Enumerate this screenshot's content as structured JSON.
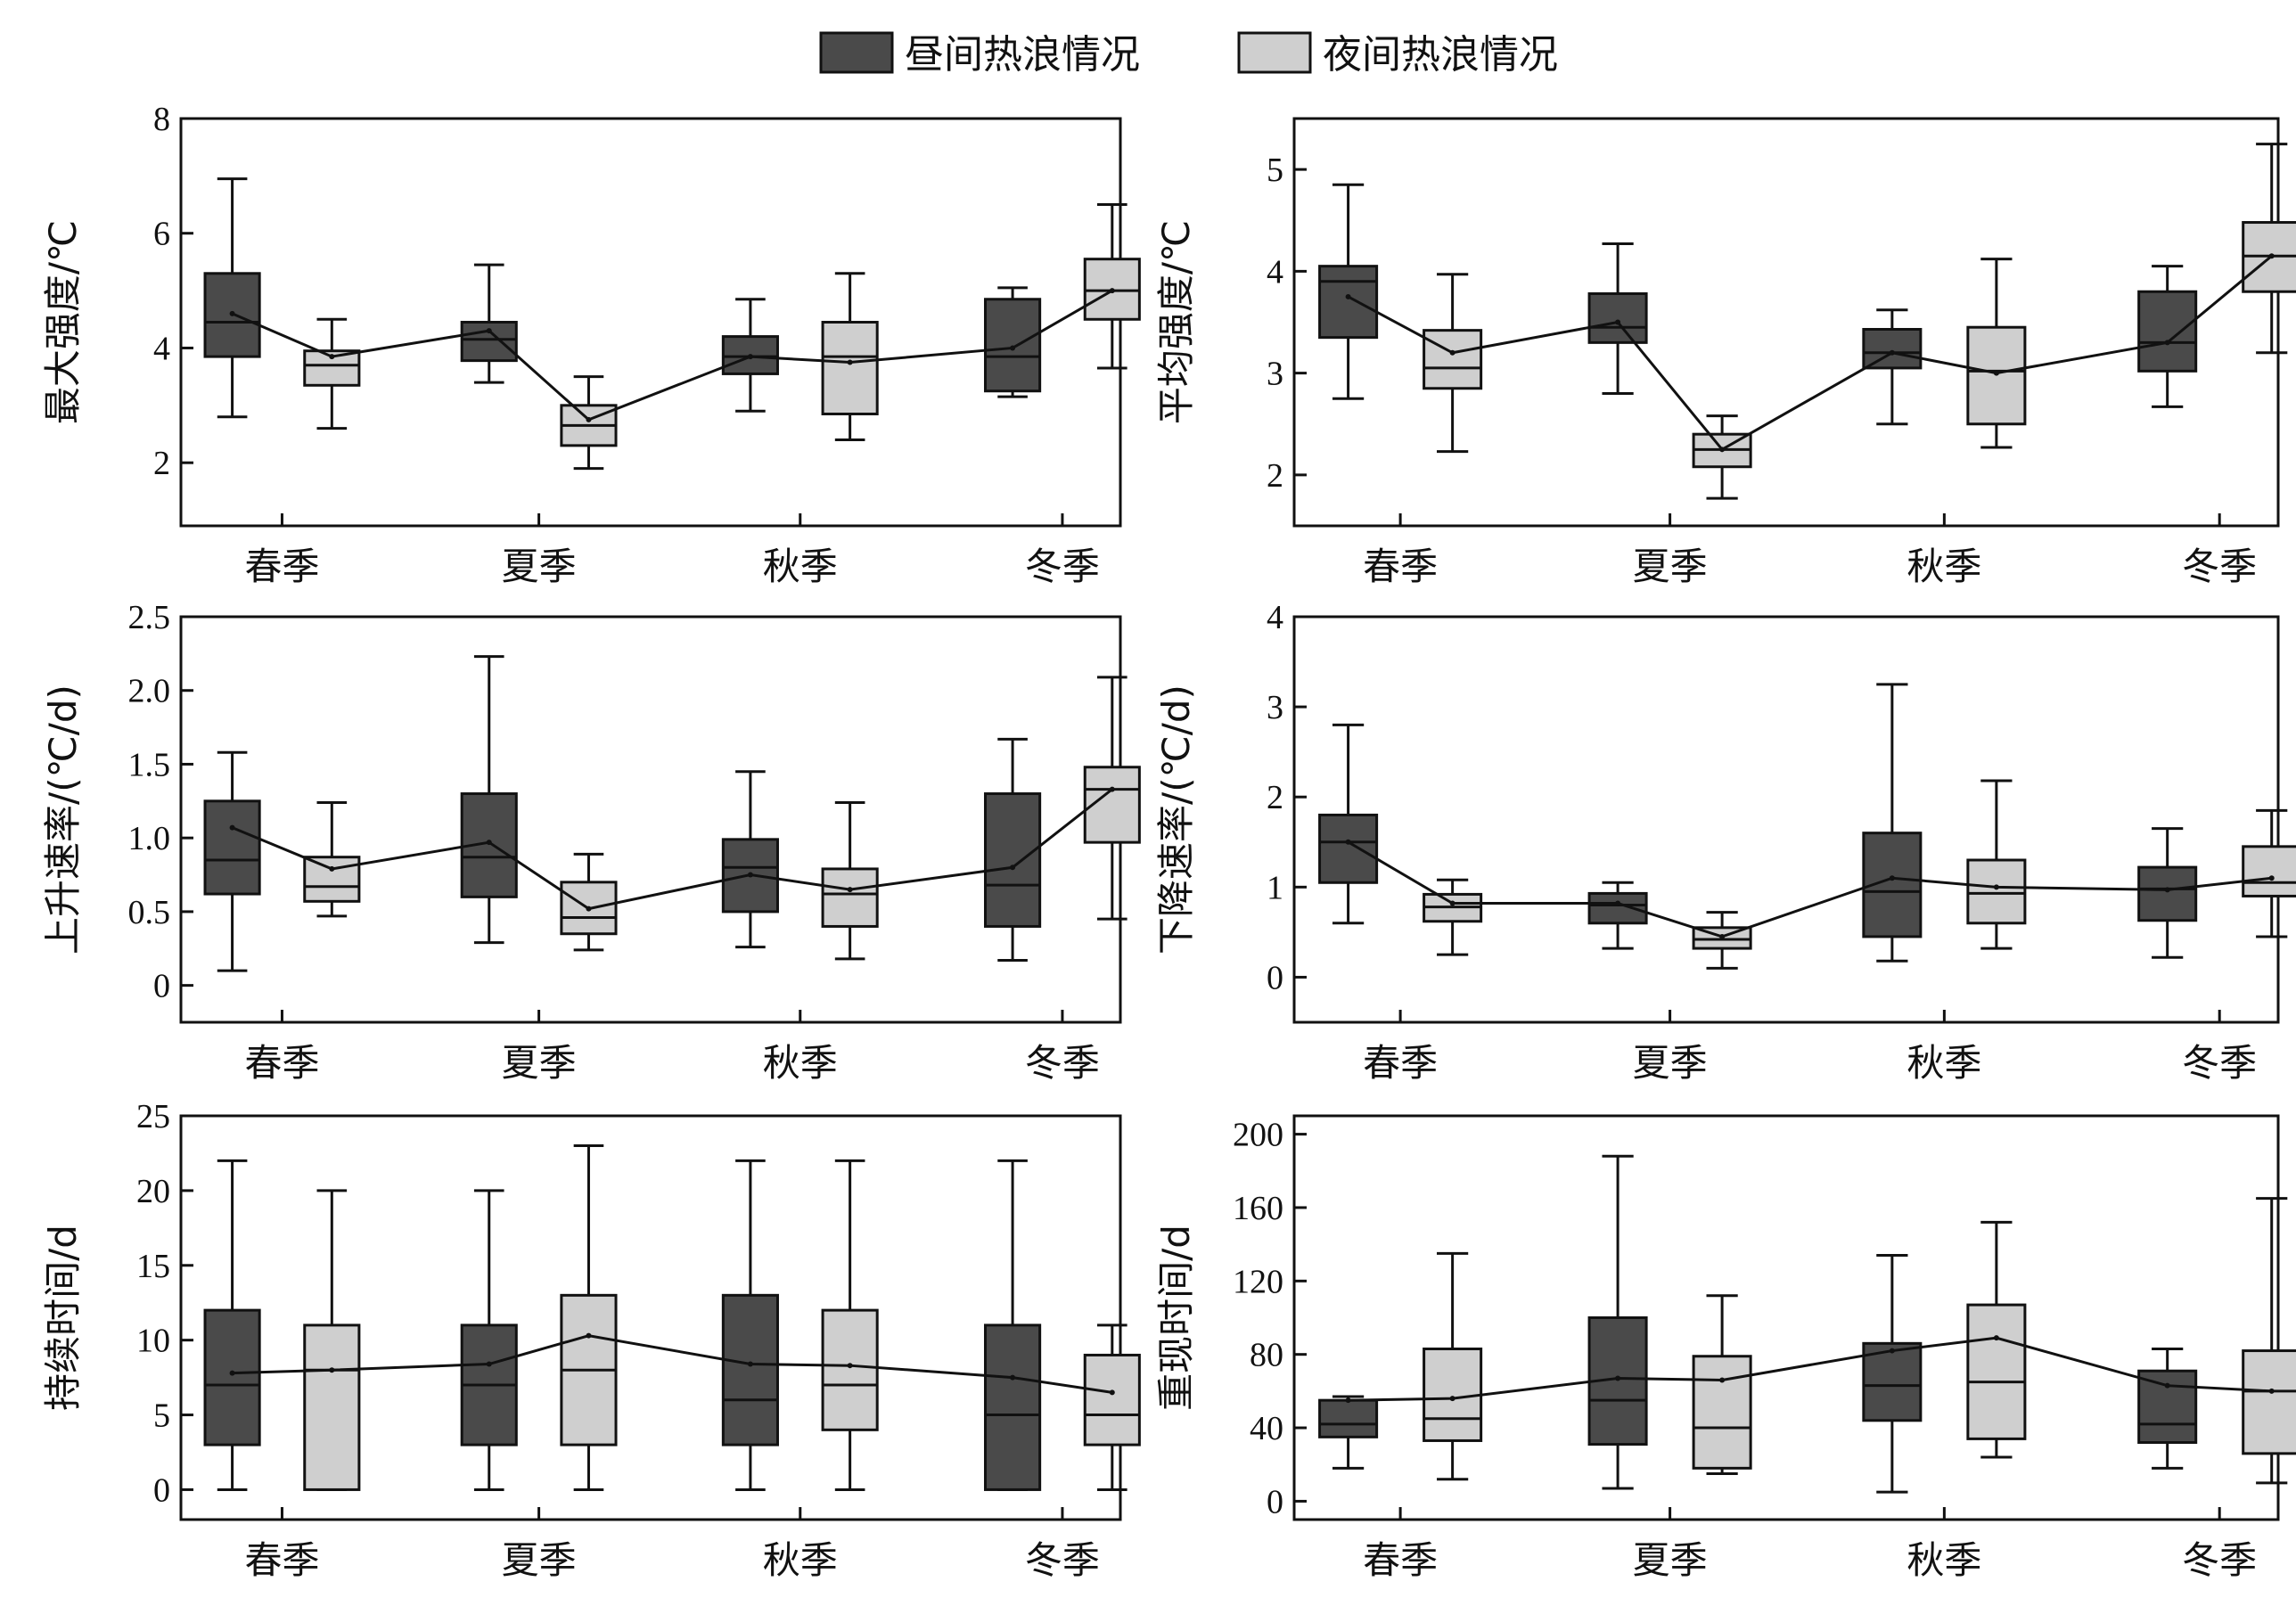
{
  "legend": {
    "day_label": "昼间热浪情况",
    "night_label": "夜间热浪情况",
    "day_color": "#4a4a4a",
    "night_color": "#cfcfcf"
  },
  "chart_data": [
    {
      "type": "box",
      "ylabel": "最大强度/℃",
      "yticks": [
        2,
        4,
        6,
        8
      ],
      "ylim": [
        0.9,
        8
      ],
      "categories": [
        "春季",
        "夏季",
        "秋季",
        "冬季"
      ],
      "series": [
        {
          "name": "昼间热浪情况",
          "boxes": [
            {
              "whisker_low": 2.8,
              "q1": 3.85,
              "median": 4.45,
              "q3": 5.3,
              "whisker_high": 6.95
            },
            {
              "whisker_low": 3.4,
              "q1": 3.78,
              "median": 4.15,
              "q3": 4.45,
              "whisker_high": 5.45
            },
            {
              "whisker_low": 2.9,
              "q1": 3.55,
              "median": 3.85,
              "q3": 4.2,
              "whisker_high": 4.85
            },
            {
              "whisker_low": 3.15,
              "q1": 3.25,
              "median": 3.85,
              "q3": 4.85,
              "whisker_high": 5.05
            }
          ],
          "mean": [
            4.6,
            4.3,
            3.85,
            4.0
          ]
        },
        {
          "name": "夜间热浪情况",
          "boxes": [
            {
              "whisker_low": 2.6,
              "q1": 3.35,
              "median": 3.7,
              "q3": 3.95,
              "whisker_high": 4.5
            },
            {
              "whisker_low": 1.9,
              "q1": 2.3,
              "median": 2.65,
              "q3": 3.0,
              "whisker_high": 3.5
            },
            {
              "whisker_low": 2.4,
              "q1": 2.85,
              "median": 3.85,
              "q3": 4.45,
              "whisker_high": 5.3
            },
            {
              "whisker_low": 3.65,
              "q1": 4.5,
              "median": 5.0,
              "q3": 5.55,
              "whisker_high": 6.5
            }
          ],
          "mean": [
            3.85,
            2.75,
            3.75,
            5.0
          ]
        }
      ]
    },
    {
      "type": "box",
      "ylabel": "平均强度/℃",
      "yticks": [
        2,
        3,
        4,
        5
      ],
      "ylim": [
        1.5,
        5.5
      ],
      "categories": [
        "春季",
        "夏季",
        "秋季",
        "冬季"
      ],
      "series": [
        {
          "name": "昼间热浪情况",
          "boxes": [
            {
              "whisker_low": 2.75,
              "q1": 3.35,
              "median": 3.9,
              "q3": 4.05,
              "whisker_high": 4.85
            },
            {
              "whisker_low": 2.8,
              "q1": 3.3,
              "median": 3.45,
              "q3": 3.78,
              "whisker_high": 4.27
            },
            {
              "whisker_low": 2.5,
              "q1": 3.05,
              "median": 3.2,
              "q3": 3.43,
              "whisker_high": 3.62
            },
            {
              "whisker_low": 2.67,
              "q1": 3.02,
              "median": 3.3,
              "q3": 3.8,
              "whisker_high": 4.05
            }
          ],
          "mean": [
            3.75,
            3.5,
            3.2,
            3.3
          ]
        },
        {
          "name": "夜间热浪情况",
          "boxes": [
            {
              "whisker_low": 2.23,
              "q1": 2.85,
              "median": 3.05,
              "q3": 3.42,
              "whisker_high": 3.97
            },
            {
              "whisker_low": 1.77,
              "q1": 2.08,
              "median": 2.25,
              "q3": 2.4,
              "whisker_high": 2.58
            },
            {
              "whisker_low": 2.27,
              "q1": 2.5,
              "median": 3.02,
              "q3": 3.45,
              "whisker_high": 4.12
            },
            {
              "whisker_low": 3.2,
              "q1": 3.8,
              "median": 4.15,
              "q3": 4.48,
              "whisker_high": 5.25
            }
          ],
          "mean": [
            3.2,
            2.25,
            3.0,
            4.15
          ]
        }
      ]
    },
    {
      "type": "box",
      "ylabel": "上升速率/(℃/d)",
      "yticks": [
        0,
        0.5,
        1.0,
        1.5,
        2.0,
        2.5
      ],
      "ytick_labels": [
        "0",
        "0.5",
        "1.0",
        "1.5",
        "2.0",
        "2.5"
      ],
      "ylim": [
        -0.25,
        2.5
      ],
      "categories": [
        "春季",
        "夏季",
        "秋季",
        "冬季"
      ],
      "series": [
        {
          "name": "昼间热浪情况",
          "boxes": [
            {
              "whisker_low": 0.1,
              "q1": 0.62,
              "median": 0.85,
              "q3": 1.25,
              "whisker_high": 1.58
            },
            {
              "whisker_low": 0.29,
              "q1": 0.6,
              "median": 0.87,
              "q3": 1.3,
              "whisker_high": 2.23
            },
            {
              "whisker_low": 0.26,
              "q1": 0.5,
              "median": 0.8,
              "q3": 0.99,
              "whisker_high": 1.45
            },
            {
              "whisker_low": 0.17,
              "q1": 0.4,
              "median": 0.68,
              "q3": 1.3,
              "whisker_high": 1.67
            }
          ],
          "mean": [
            1.07,
            0.97,
            0.75,
            0.8
          ]
        },
        {
          "name": "夜间热浪情况",
          "boxes": [
            {
              "whisker_low": 0.47,
              "q1": 0.57,
              "median": 0.67,
              "q3": 0.87,
              "whisker_high": 1.24
            },
            {
              "whisker_low": 0.24,
              "q1": 0.35,
              "median": 0.46,
              "q3": 0.7,
              "whisker_high": 0.89
            },
            {
              "whisker_low": 0.18,
              "q1": 0.4,
              "median": 0.62,
              "q3": 0.79,
              "whisker_high": 1.24
            },
            {
              "whisker_low": 0.45,
              "q1": 0.97,
              "median": 1.33,
              "q3": 1.48,
              "whisker_high": 2.09
            }
          ],
          "mean": [
            0.79,
            0.52,
            0.65,
            1.33
          ]
        }
      ]
    },
    {
      "type": "box",
      "ylabel": "下降速率/(℃/d)",
      "yticks": [
        0,
        1,
        2,
        3,
        4
      ],
      "ylim": [
        -0.5,
        4
      ],
      "categories": [
        "春季",
        "夏季",
        "秋季",
        "冬季"
      ],
      "series": [
        {
          "name": "昼间热浪情况",
          "boxes": [
            {
              "whisker_low": 0.6,
              "q1": 1.05,
              "median": 1.5,
              "q3": 1.8,
              "whisker_high": 2.8
            },
            {
              "whisker_low": 0.32,
              "q1": 0.6,
              "median": 0.8,
              "q3": 0.93,
              "whisker_high": 1.05
            },
            {
              "whisker_low": 0.18,
              "q1": 0.45,
              "median": 0.95,
              "q3": 1.6,
              "whisker_high": 3.25
            },
            {
              "whisker_low": 0.22,
              "q1": 0.63,
              "median": 0.98,
              "q3": 1.22,
              "whisker_high": 1.65
            }
          ],
          "mean": [
            1.5,
            0.82,
            1.1,
            0.97
          ]
        },
        {
          "name": "夜间热浪情况",
          "boxes": [
            {
              "whisker_low": 0.25,
              "q1": 0.62,
              "median": 0.78,
              "q3": 0.92,
              "whisker_high": 1.08
            },
            {
              "whisker_low": 0.1,
              "q1": 0.32,
              "median": 0.42,
              "q3": 0.55,
              "whisker_high": 0.72
            },
            {
              "whisker_low": 0.32,
              "q1": 0.6,
              "median": 0.93,
              "q3": 1.3,
              "whisker_high": 2.18
            },
            {
              "whisker_low": 0.45,
              "q1": 0.9,
              "median": 1.05,
              "q3": 1.45,
              "whisker_high": 1.85
            }
          ],
          "mean": [
            0.82,
            0.45,
            1.0,
            1.1
          ]
        }
      ]
    },
    {
      "type": "box",
      "ylabel": "持续时间/d",
      "yticks": [
        0,
        5,
        10,
        15,
        20,
        25
      ],
      "ylim": [
        -2,
        25
      ],
      "categories": [
        "春季",
        "夏季",
        "秋季",
        "冬季"
      ],
      "series": [
        {
          "name": "昼间热浪情况",
          "boxes": [
            {
              "whisker_low": 0,
              "q1": 3,
              "median": 7,
              "q3": 12,
              "whisker_high": 22
            },
            {
              "whisker_low": 0,
              "q1": 3,
              "median": 7,
              "q3": 11,
              "whisker_high": 20
            },
            {
              "whisker_low": 0,
              "q1": 3,
              "median": 6,
              "q3": 13,
              "whisker_high": 22
            },
            {
              "whisker_low": 0,
              "q1": 0,
              "median": 5,
              "q3": 11,
              "whisker_high": 22
            }
          ],
          "mean": [
            7.8,
            8.4,
            8.4,
            7.5
          ]
        },
        {
          "name": "夜间热浪情况",
          "boxes": [
            {
              "whisker_low": 0,
              "q1": 0,
              "median": 8,
              "q3": 11,
              "whisker_high": 20
            },
            {
              "whisker_low": 0,
              "q1": 3,
              "median": 8,
              "q3": 13,
              "whisker_high": 23
            },
            {
              "whisker_low": 0,
              "q1": 4,
              "median": 7,
              "q3": 12,
              "whisker_high": 22
            },
            {
              "whisker_low": 0,
              "q1": 3,
              "median": 5,
              "q3": 9,
              "whisker_high": 11
            }
          ],
          "mean": [
            8.0,
            10.3,
            8.3,
            6.5
          ]
        }
      ]
    },
    {
      "type": "box",
      "ylabel": "重现时间/d",
      "yticks": [
        0,
        40,
        80,
        120,
        160,
        200
      ],
      "ylim": [
        -10,
        210
      ],
      "categories": [
        "春季",
        "夏季",
        "秋季",
        "冬季"
      ],
      "series": [
        {
          "name": "昼间热浪情况",
          "boxes": [
            {
              "whisker_low": 18,
              "q1": 35,
              "median": 42,
              "q3": 55,
              "whisker_high": 57
            },
            {
              "whisker_low": 7,
              "q1": 31,
              "median": 55,
              "q3": 100,
              "whisker_high": 188
            },
            {
              "whisker_low": 5,
              "q1": 44,
              "median": 63,
              "q3": 86,
              "whisker_high": 134
            },
            {
              "whisker_low": 18,
              "q1": 32,
              "median": 42,
              "q3": 71,
              "whisker_high": 83
            }
          ],
          "mean": [
            55,
            67,
            82,
            63
          ]
        },
        {
          "name": "夜间热浪情况",
          "boxes": [
            {
              "whisker_low": 12,
              "q1": 33,
              "median": 45,
              "q3": 83,
              "whisker_high": 135
            },
            {
              "whisker_low": 15,
              "q1": 18,
              "median": 40,
              "q3": 79,
              "whisker_high": 112
            },
            {
              "whisker_low": 24,
              "q1": 34,
              "median": 65,
              "q3": 107,
              "whisker_high": 152
            },
            {
              "whisker_low": 10,
              "q1": 26,
              "median": 60,
              "q3": 82,
              "whisker_high": 165
            }
          ],
          "mean": [
            56,
            66,
            89,
            60
          ]
        }
      ]
    }
  ]
}
